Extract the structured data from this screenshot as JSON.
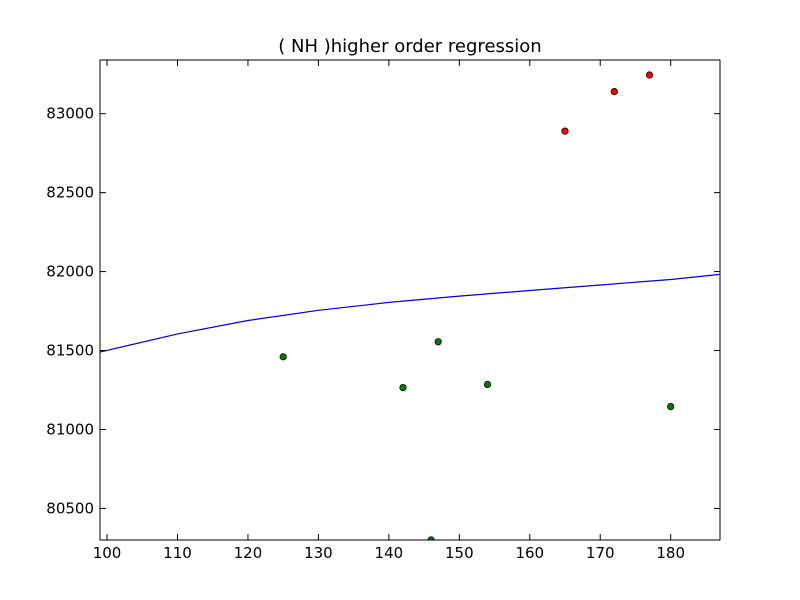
{
  "chart_data": {
    "type": "scatter",
    "title": "(  NH  )higher order regression",
    "xlabel": "",
    "ylabel": "",
    "xlim": [
      99,
      187
    ],
    "ylim": [
      80300,
      83340
    ],
    "x_ticks": [
      100,
      110,
      120,
      130,
      140,
      150,
      160,
      170,
      180
    ],
    "y_ticks": [
      80500,
      81000,
      81500,
      82000,
      82500,
      83000
    ],
    "grid": false,
    "series": [
      {
        "color": "#008000",
        "points": [
          {
            "x": 125,
            "y": 81460
          },
          {
            "x": 142,
            "y": 81265
          },
          {
            "x": 147,
            "y": 81555
          },
          {
            "x": 154,
            "y": 81285
          },
          {
            "x": 180,
            "y": 81145
          },
          {
            "x": 146,
            "y": 80300
          }
        ]
      },
      {
        "color": "#ff0000",
        "points": [
          {
            "x": 165,
            "y": 82890
          },
          {
            "x": 172,
            "y": 83140
          },
          {
            "x": 177,
            "y": 83245
          }
        ]
      }
    ],
    "regression_curve": {
      "color": "#0000cc",
      "points": [
        {
          "x": 99,
          "y": 81490
        },
        {
          "x": 110,
          "y": 81605
        },
        {
          "x": 120,
          "y": 81690
        },
        {
          "x": 130,
          "y": 81755
        },
        {
          "x": 140,
          "y": 81805
        },
        {
          "x": 150,
          "y": 81845
        },
        {
          "x": 160,
          "y": 81880
        },
        {
          "x": 170,
          "y": 81915
        },
        {
          "x": 180,
          "y": 81950
        },
        {
          "x": 187,
          "y": 81982
        }
      ]
    }
  }
}
